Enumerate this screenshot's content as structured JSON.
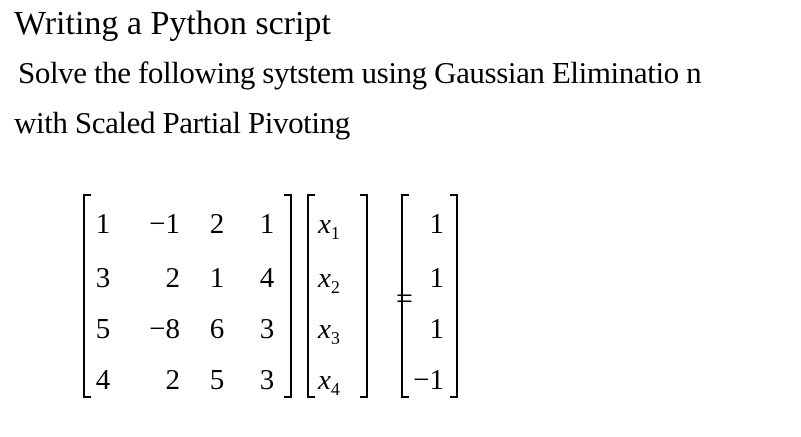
{
  "heading": "Writing a Python script",
  "instruction": {
    "line1": "Solve the following  sytstem using Gaussian  Eliminatio  n",
    "line2": "with Scaled Partial Pivoting"
  },
  "matrix_a": [
    [
      "1",
      "−1",
      "2",
      "1"
    ],
    [
      "3",
      "2",
      "1",
      "4"
    ],
    [
      "5",
      "−8",
      "6",
      "3"
    ],
    [
      "4",
      "2",
      "5",
      "3"
    ]
  ],
  "vector_x": [
    {
      "base": "x",
      "sub": "1"
    },
    {
      "base": "x",
      "sub": "2"
    },
    {
      "base": "x",
      "sub": "3"
    },
    {
      "base": "x",
      "sub": "4"
    }
  ],
  "vector_b": [
    "1",
    "1",
    "1",
    "−1"
  ],
  "equals": "="
}
